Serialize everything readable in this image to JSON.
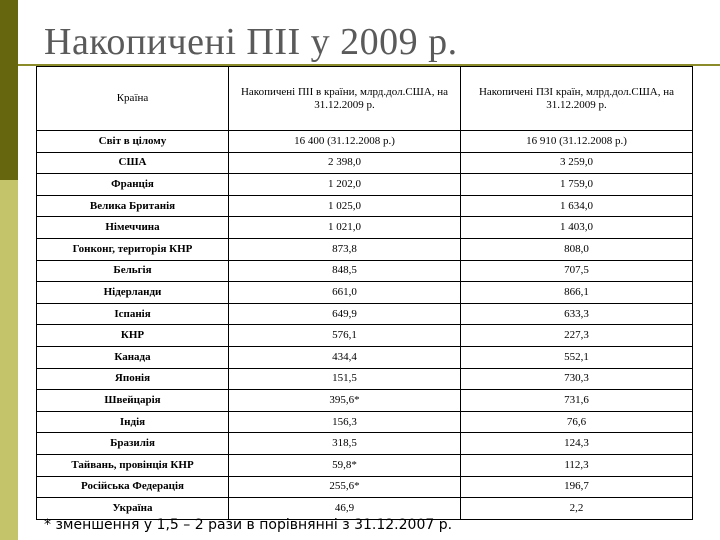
{
  "title": "Накопичені ПІІ у 2009 р.",
  "colors": {
    "bar_dark": "#66660f",
    "bar_light": "#c4c46a",
    "rule": "#8b8b2a",
    "title": "#5a5a5a"
  },
  "table": {
    "headers": [
      "Країна",
      "Накопичені ПІІ в країни, млрд.дол.США, на 31.12.2009 р.",
      "Накопичені ПЗІ країн, млрд.дол.США, на 31.12.2009 р."
    ],
    "rows": [
      [
        "Світ в цілому",
        "16 400 (31.12.2008 р.)",
        "16 910 (31.12.2008 р.)"
      ],
      [
        "США",
        "2 398,0",
        "3 259,0"
      ],
      [
        "Франція",
        "1 202,0",
        "1 759,0"
      ],
      [
        "Велика Британія",
        "1 025,0",
        "1 634,0"
      ],
      [
        "Німеччина",
        "1 021,0",
        "1 403,0"
      ],
      [
        "Гонконг, територія КНР",
        "873,8",
        "808,0"
      ],
      [
        "Бельгія",
        "848,5",
        "707,5"
      ],
      [
        "Нідерланди",
        "661,0",
        "866,1"
      ],
      [
        "Іспанія",
        "649,9",
        "633,3"
      ],
      [
        "КНР",
        "576,1",
        "227,3"
      ],
      [
        "Канада",
        "434,4",
        "552,1"
      ],
      [
        "Японія",
        "151,5",
        "730,3"
      ],
      [
        "Швейцарія",
        "395,6*",
        "731,6"
      ],
      [
        "Індія",
        "156,3",
        "76,6"
      ],
      [
        "Бразилія",
        "318,5",
        "124,3"
      ],
      [
        "Тайвань, провінція КНР",
        "59,8*",
        "112,3"
      ],
      [
        "Російська Федерація",
        "255,6*",
        "196,7"
      ],
      [
        "Україна",
        "46,9",
        "2,2"
      ]
    ]
  },
  "footnote": "* зменшення у 1,5 – 2 рази в порівнянні з 31.12.2007 р."
}
